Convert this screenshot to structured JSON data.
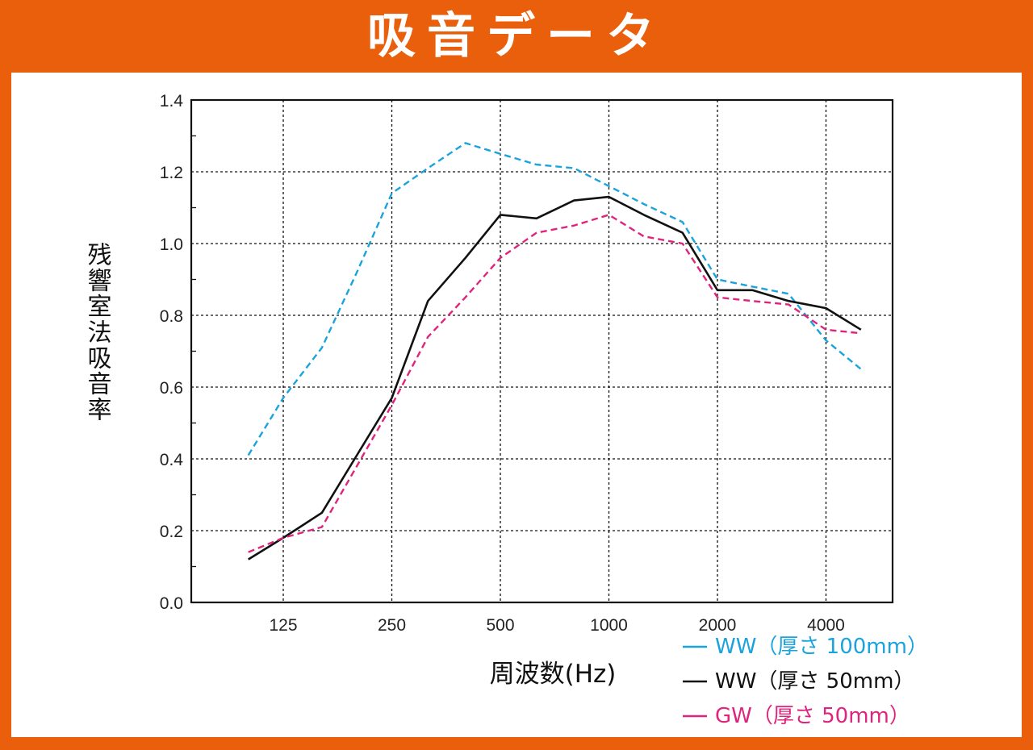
{
  "header": {
    "title": "吸音データ"
  },
  "colors": {
    "frame": "#e95f0c",
    "ww100": "#1aa3dc",
    "ww50": "#111111",
    "gw50": "#e0247e",
    "grid": "#111111"
  },
  "chart_data": {
    "type": "line",
    "title": "",
    "xlabel": "周波数(Hz)",
    "ylabel": "残響室法吸音率",
    "x_scale": "log2",
    "x": [
      100,
      125,
      160,
      200,
      250,
      315,
      400,
      500,
      630,
      800,
      1000,
      1250,
      1600,
      2000,
      2500,
      3150,
      4000,
      5000
    ],
    "x_ticks": [
      "125",
      "250",
      "500",
      "1000",
      "2000",
      "4000"
    ],
    "ylim": [
      0,
      1.4
    ],
    "y_ticks": [
      "0.0",
      "0.2",
      "0.4",
      "0.6",
      "0.8",
      "1.0",
      "1.2",
      "1.4"
    ],
    "grid": true,
    "legend_position": "bottom-right",
    "series": [
      {
        "name": "WW（厚さ 100mm）",
        "style": "dashed",
        "values": [
          0.41,
          0.57,
          0.71,
          0.92,
          1.14,
          1.21,
          1.28,
          1.25,
          1.22,
          1.21,
          1.16,
          1.11,
          1.06,
          0.9,
          0.88,
          0.86,
          0.73,
          0.65
        ]
      },
      {
        "name": "WW（厚さ 50mm）",
        "style": "solid",
        "values": [
          0.12,
          0.18,
          0.25,
          0.41,
          0.57,
          0.84,
          0.96,
          1.08,
          1.07,
          1.12,
          1.13,
          1.08,
          1.03,
          0.87,
          0.87,
          0.84,
          0.82,
          0.76
        ]
      },
      {
        "name": "GW（厚さ 50mm）",
        "style": "dashed",
        "values": [
          0.14,
          0.18,
          0.21,
          0.38,
          0.55,
          0.74,
          0.85,
          0.96,
          1.03,
          1.05,
          1.08,
          1.02,
          1.0,
          0.85,
          0.84,
          0.83,
          0.76,
          0.75
        ]
      }
    ]
  }
}
